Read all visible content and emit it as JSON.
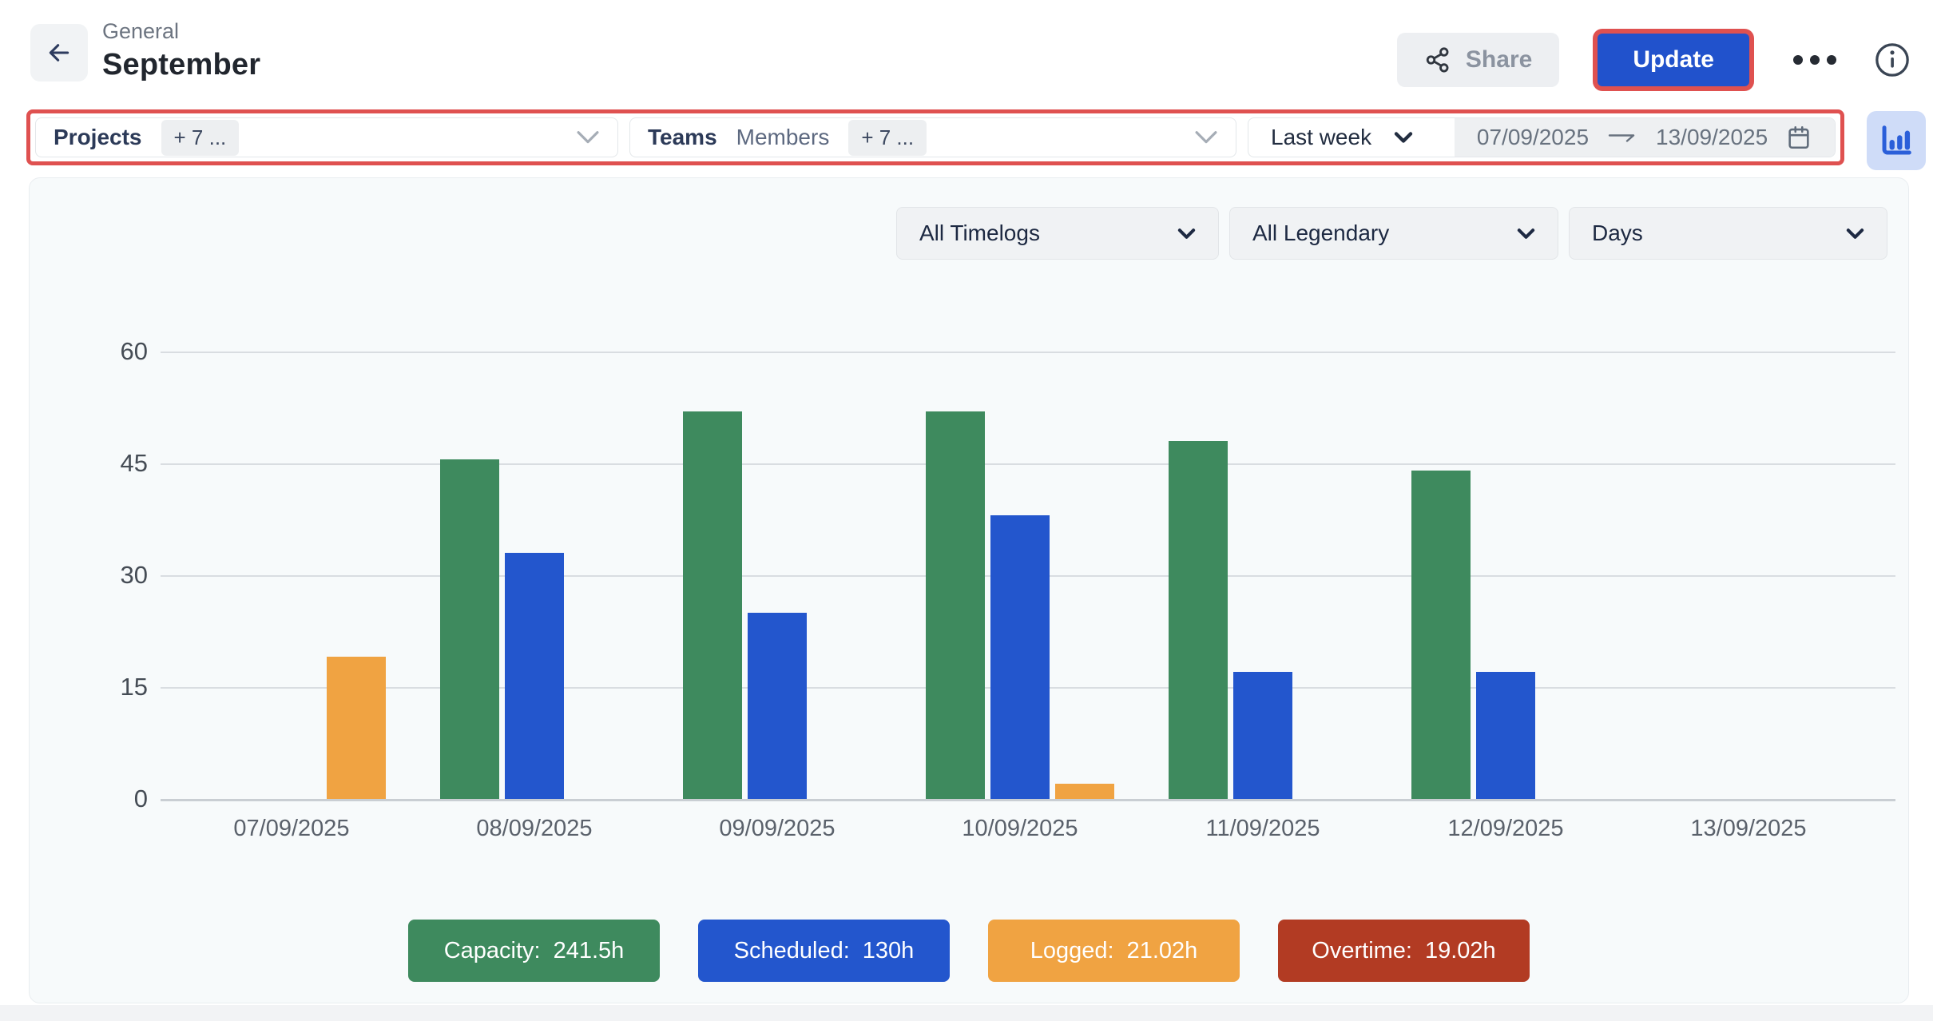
{
  "header": {
    "breadcrumb": "General",
    "title": "September",
    "share_label": "Share",
    "update_label": "Update"
  },
  "filters": {
    "projects_label": "Projects",
    "projects_chip": "+ 7 ...",
    "teams_label": "Teams",
    "members_label": "Members",
    "teams_chip": "+ 7 ...",
    "range_label": "Last week",
    "date_from": "07/09/2025",
    "date_to": "13/09/2025"
  },
  "chart_controls": {
    "timelogs": "All Timelogs",
    "legend_filter": "All Legendary",
    "granularity": "Days"
  },
  "chart_data": {
    "type": "bar",
    "categories": [
      "07/09/2025",
      "08/09/2025",
      "09/09/2025",
      "10/09/2025",
      "11/09/2025",
      "12/09/2025",
      "13/09/2025"
    ],
    "series": [
      {
        "name": "Capacity",
        "color": "#3e8a5e",
        "values": [
          0,
          45.5,
          52,
          52,
          48,
          44,
          0
        ]
      },
      {
        "name": "Scheduled",
        "color": "#2356cd",
        "values": [
          0,
          33,
          25,
          38,
          17,
          17,
          0
        ]
      },
      {
        "name": "Logged",
        "color": "#f0a342",
        "values": [
          19.02,
          0,
          0,
          2,
          0,
          0,
          0
        ]
      }
    ],
    "title": "",
    "xlabel": "",
    "ylabel": "",
    "ylim": [
      0,
      60
    ],
    "yticks": [
      60,
      45,
      30,
      15,
      0
    ],
    "grid": true,
    "legend_position": "bottom"
  },
  "legend": [
    {
      "label": "Capacity:",
      "value": "241.5h",
      "color": "#3e8a5e"
    },
    {
      "label": "Scheduled:",
      "value": "130h",
      "color": "#2356cd"
    },
    {
      "label": "Logged:",
      "value": "21.02h",
      "color": "#f0a342"
    },
    {
      "label": "Overtime:",
      "value": "19.02h",
      "color": "#b23b23"
    }
  ],
  "colors": {
    "accent_blue": "#2152cc",
    "annotation_red": "#df5150",
    "card_background": "#f7fafb",
    "capacity_green": "#3e8a5e",
    "scheduled_blue": "#2356cd",
    "logged_orange": "#f0a342",
    "overtime_brick": "#b23b23"
  },
  "icons": {
    "back": "arrow-left",
    "share": "share-nodes",
    "more": "ellipsis",
    "info": "info-circle",
    "section_chevron": "chevron-down",
    "range_arrow": "arrow-right",
    "calendar": "calendar",
    "chart_toggle": "bar-chart"
  }
}
